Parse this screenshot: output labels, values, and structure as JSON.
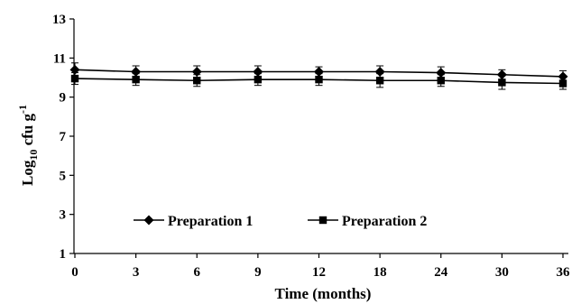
{
  "chart_data": {
    "type": "line",
    "title": "",
    "xlabel": "Time (months)",
    "ylabel": {
      "base": "Log",
      "subscript": "10",
      "unit": "cfu g",
      "superscript": "-1"
    },
    "categories": [
      "0",
      "3",
      "6",
      "9",
      "12",
      "18",
      "24",
      "30",
      "36"
    ],
    "ylim": [
      1,
      13
    ],
    "yticks": [
      "1",
      "3",
      "5",
      "7",
      "9",
      "11",
      "13"
    ],
    "grid": false,
    "legend_position": "bottom-left",
    "series": [
      {
        "name": "Preparation 1",
        "marker": "diamond",
        "color": "#000000",
        "values": [
          10.4,
          10.3,
          10.3,
          10.3,
          10.3,
          10.3,
          10.25,
          10.15,
          10.05
        ],
        "errors": [
          0.35,
          0.3,
          0.3,
          0.3,
          0.25,
          0.3,
          0.3,
          0.25,
          0.3
        ]
      },
      {
        "name": "Preparation 2",
        "marker": "square",
        "color": "#000000",
        "values": [
          9.95,
          9.9,
          9.85,
          9.9,
          9.9,
          9.85,
          9.85,
          9.75,
          9.7
        ],
        "errors": [
          0.3,
          0.3,
          0.3,
          0.3,
          0.3,
          0.35,
          0.3,
          0.35,
          0.3
        ]
      }
    ]
  }
}
